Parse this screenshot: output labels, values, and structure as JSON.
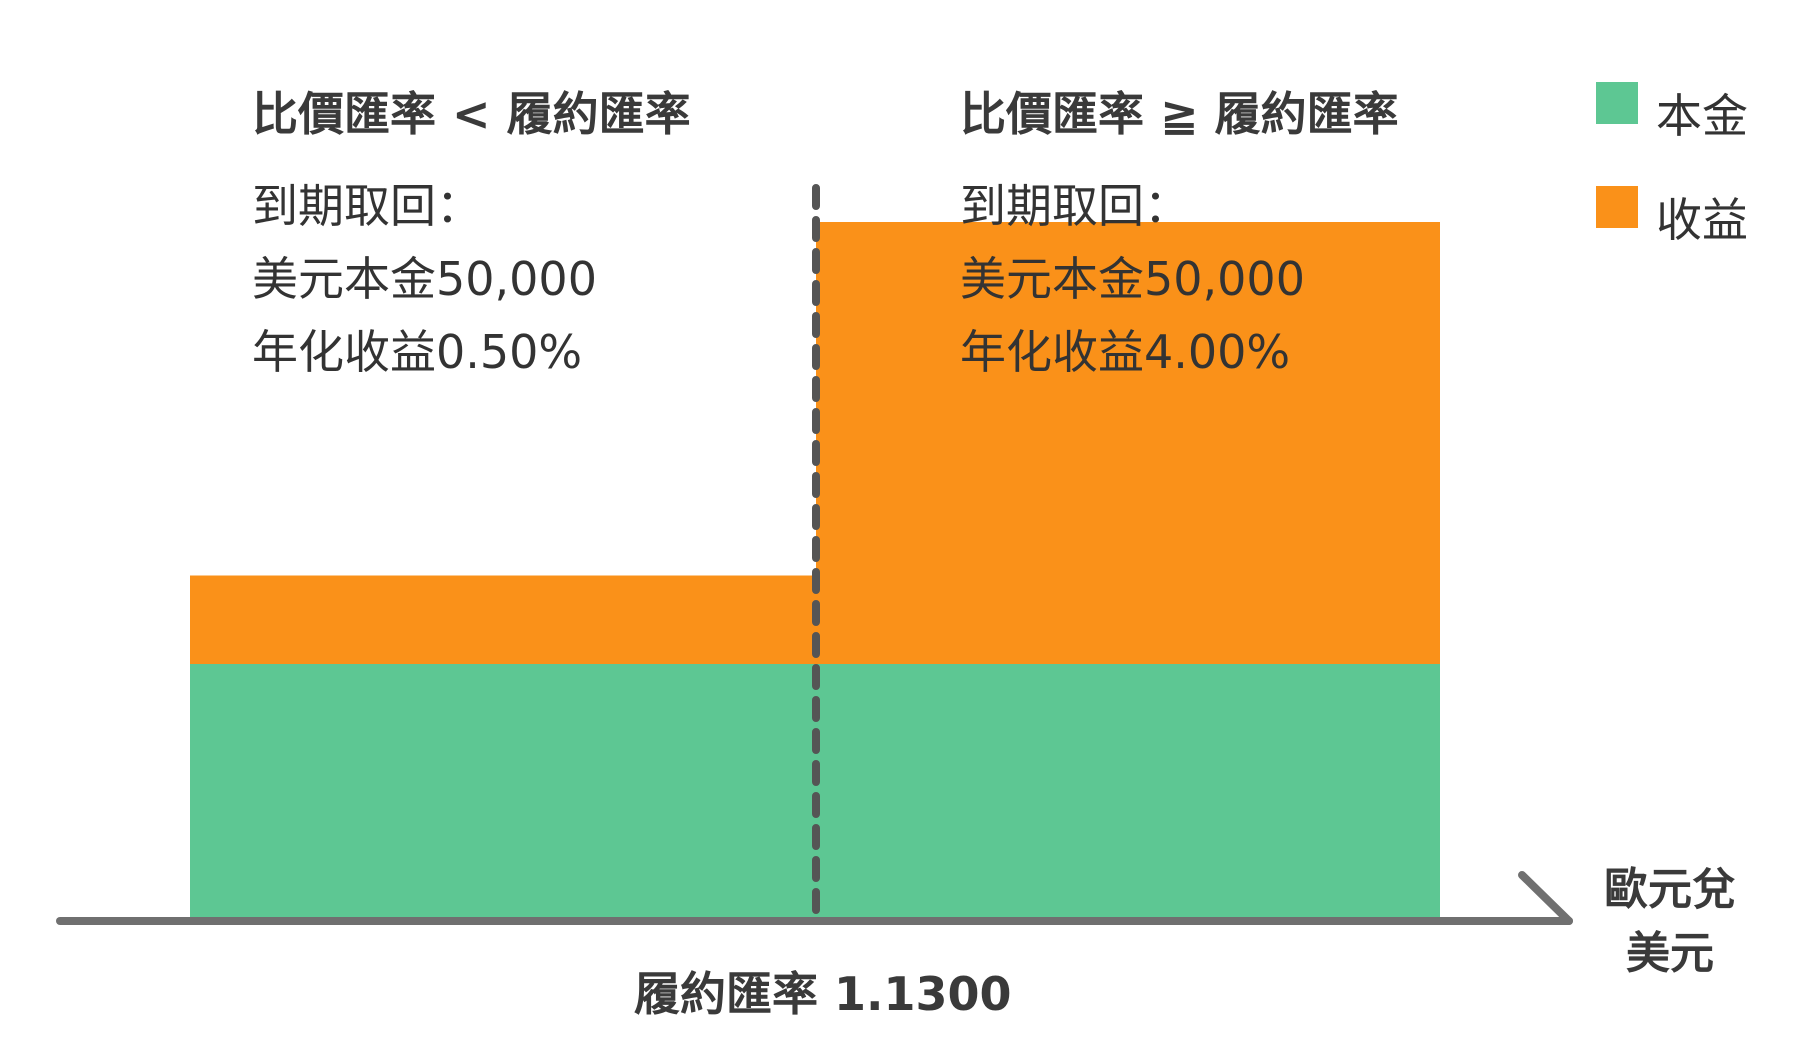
{
  "chart_data": {
    "type": "bar",
    "stacked": true,
    "categories": [
      "比價匯率 < 履約匯率",
      "比價匯率 ≧ 履約匯率"
    ],
    "series": [
      {
        "name": "本金",
        "color": "#5dc793",
        "values": [
          50000,
          50000
        ]
      },
      {
        "name": "收益",
        "color": "#fa9119",
        "values": [
          0.5,
          4.0
        ]
      }
    ],
    "annotations": [
      {
        "title": "比價匯率 < 履約匯率",
        "lines": [
          "到期取回：",
          "美元本金50,000",
          "年化收益0.50%"
        ]
      },
      {
        "title": "比價匯率 ≧ 履約匯率",
        "lines": [
          "到期取回：",
          "美元本金50,000",
          "年化收益4.00%"
        ]
      }
    ],
    "xlabel": "歐元兌美元",
    "xlabel_lines": [
      "歐元兌",
      "美元"
    ],
    "strike_label": "履約匯率 1.1300",
    "legend": {
      "position": "top-right",
      "entries": [
        {
          "label": "本金",
          "color": "#5dc793"
        },
        {
          "label": "收益",
          "color": "#fa9119"
        }
      ]
    },
    "axis_color": "#707070",
    "divider_color": "#555555",
    "grid": false
  }
}
